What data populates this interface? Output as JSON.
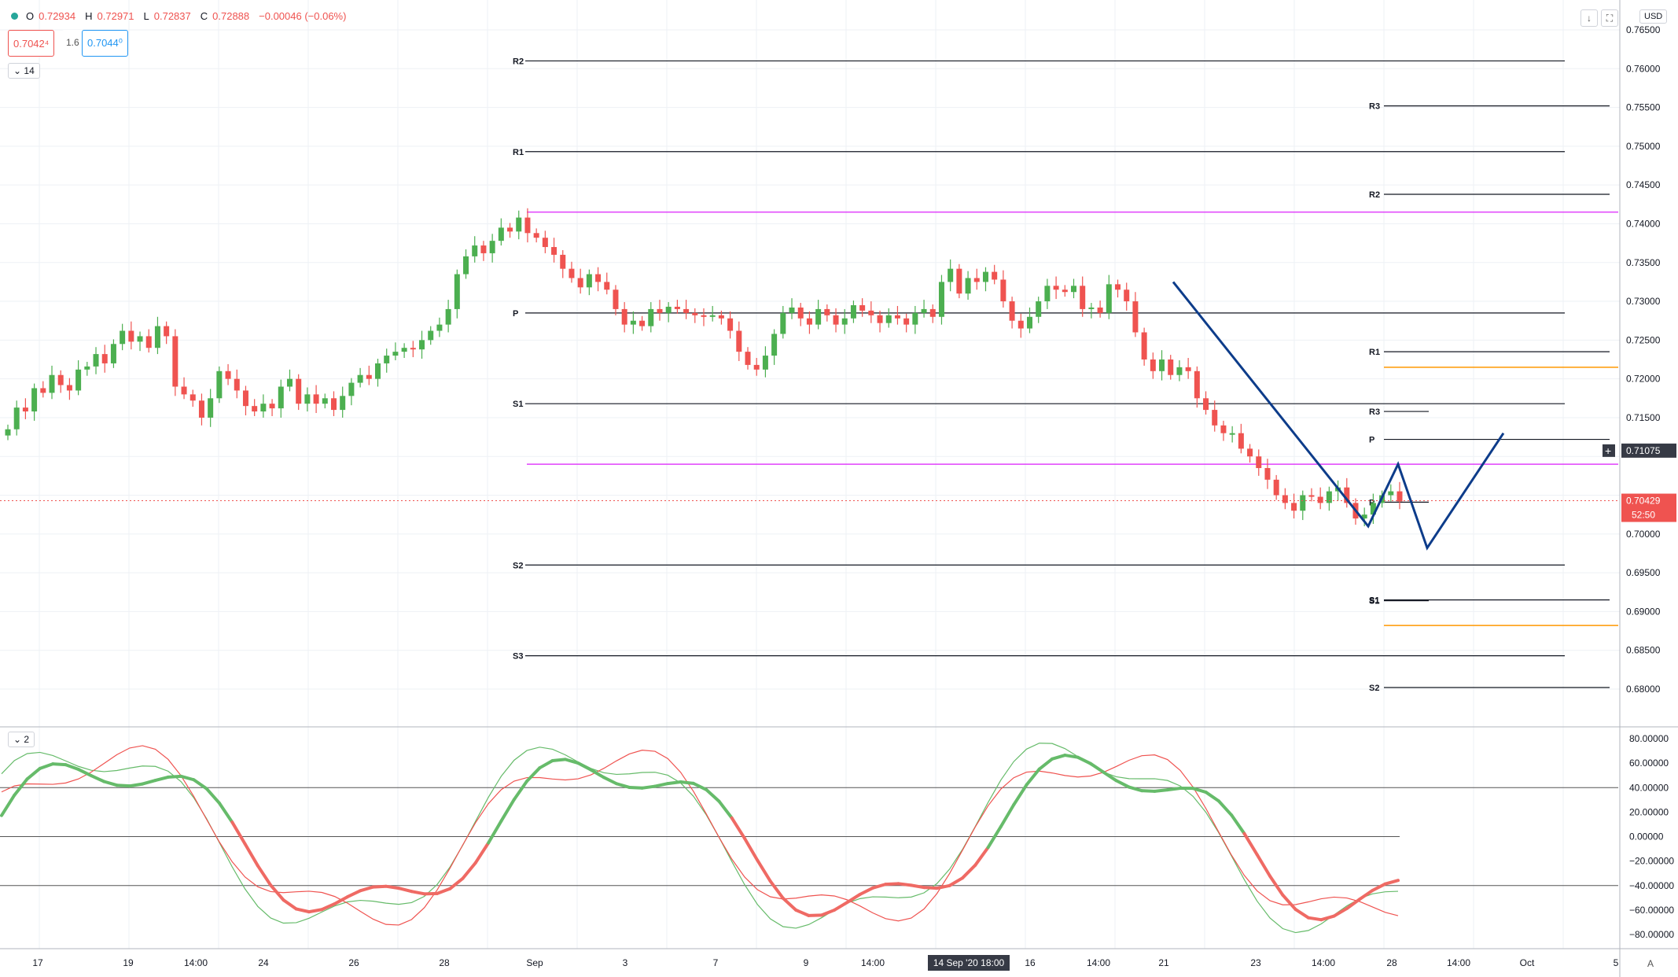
{
  "legend": {
    "o_label": "O",
    "o": "0.72934",
    "h_label": "H",
    "h": "0.72971",
    "l_label": "L",
    "l": "0.72837",
    "c_label": "C",
    "c": "0.72888",
    "change": "−0.00046 (−0.06%)"
  },
  "bid": "0.7042⁴",
  "spread": "1.6",
  "ask": "0.7044⁰",
  "period_label": "14",
  "osc_label": "2",
  "currency": "USD",
  "axis_corner": "A",
  "colors": {
    "up": "#4caf50",
    "down": "#ef5350",
    "pattern": "#0d3c8a",
    "magenta": "#e040fb",
    "orange": "#ff9800"
  },
  "icons": {
    "down_arrow": "arrow-down-icon",
    "fullscreen": "fullscreen-icon"
  },
  "price_axis": {
    "ticks": [
      "0.76500",
      "0.76000",
      "0.75500",
      "0.75000",
      "0.74500",
      "0.74000",
      "0.73500",
      "0.73000",
      "0.72500",
      "0.72000",
      "0.71500",
      "0.71075",
      "0.70429",
      "0.70000",
      "0.69500",
      "0.69000",
      "0.68500",
      "0.68000"
    ],
    "crosshair_label": "0.71075",
    "last_label": "0.70429",
    "countdown": "52:50"
  },
  "osc_axis": {
    "ticks": [
      "80.00000",
      "60.00000",
      "40.00000",
      "20.00000",
      "0.00000",
      "−20.00000",
      "−40.00000",
      "−60.00000",
      "−80.00000"
    ]
  },
  "time_axis": {
    "labels": [
      "17",
      "19",
      "14:00",
      "24",
      "26",
      "28",
      "Sep",
      "3",
      "7",
      "9",
      "14:00",
      "16",
      "14:00",
      "21",
      "23",
      "14:00",
      "28",
      "14:00",
      "Oct",
      "5"
    ],
    "crosshair_label": "14 Sep '20   18:00"
  },
  "chart_data": {
    "type": "candlestick",
    "pivots_monthly": [
      {
        "label": "R2",
        "value": 0.761
      },
      {
        "label": "R1",
        "value": 0.7493
      },
      {
        "label": "P",
        "value": 0.7285
      },
      {
        "label": "S1",
        "value": 0.7168
      },
      {
        "label": "S2",
        "value": 0.696
      },
      {
        "label": "S3",
        "value": 0.6843
      }
    ],
    "pivots_weekly": [
      {
        "label": "R3",
        "value": 0.7552
      },
      {
        "label": "R2",
        "value": 0.7438
      },
      {
        "label": "R1",
        "value": 0.7235
      },
      {
        "label": "S1",
        "value": 0.6915
      },
      {
        "label": "S2",
        "value": 0.6802
      }
    ],
    "pivots_daily": [
      {
        "label": "R3",
        "value": 0.7158
      },
      {
        "label": "P",
        "value": 0.7122
      },
      {
        "label": "P",
        "value": 0.7041
      },
      {
        "label": "S1",
        "value": 0.6914
      }
    ],
    "hlines": [
      {
        "value": 0.7415,
        "color": "magenta"
      },
      {
        "value": 0.709,
        "color": "magenta"
      },
      {
        "value": 0.7215,
        "color": "orange"
      },
      {
        "value": 0.6882,
        "color": "orange"
      }
    ],
    "candles": [
      0.7135,
      0.7163,
      0.7158,
      0.7188,
      0.7182,
      0.7205,
      0.7192,
      0.7185,
      0.7212,
      0.7216,
      0.7232,
      0.722,
      0.7245,
      0.7262,
      0.7248,
      0.7255,
      0.724,
      0.7268,
      0.7255,
      0.719,
      0.718,
      0.7172,
      0.715,
      0.7175,
      0.721,
      0.72,
      0.7185,
      0.7165,
      0.7158,
      0.7168,
      0.7162,
      0.719,
      0.72,
      0.7168,
      0.718,
      0.7168,
      0.7175,
      0.716,
      0.7178,
      0.7195,
      0.7205,
      0.72,
      0.722,
      0.723,
      0.7235,
      0.724,
      0.7238,
      0.725,
      0.7262,
      0.727,
      0.729,
      0.7335,
      0.7358,
      0.7372,
      0.7362,
      0.7378,
      0.7395,
      0.739,
      0.7408,
      0.7388,
      0.7382,
      0.737,
      0.736,
      0.7342,
      0.733,
      0.7318,
      0.7335,
      0.7325,
      0.7315,
      0.729,
      0.727,
      0.7275,
      0.7268,
      0.729,
      0.7285,
      0.7293,
      0.729,
      0.7285,
      0.7282,
      0.728,
      0.7282,
      0.7278,
      0.7262,
      0.7235,
      0.7218,
      0.7212,
      0.723,
      0.7258,
      0.7285,
      0.7292,
      0.7278,
      0.727,
      0.729,
      0.7282,
      0.727,
      0.7278,
      0.7295,
      0.7288,
      0.7282,
      0.7272,
      0.7282,
      0.7278,
      0.727,
      0.7285,
      0.729,
      0.728,
      0.7325,
      0.7342,
      0.731,
      0.733,
      0.7325,
      0.7338,
      0.7328,
      0.73,
      0.7275,
      0.7265,
      0.728,
      0.73,
      0.732,
      0.7315,
      0.7312,
      0.732,
      0.729,
      0.7292,
      0.7285,
      0.7322,
      0.7315,
      0.73,
      0.726,
      0.7225,
      0.721,
      0.7225,
      0.7205,
      0.7215,
      0.721,
      0.7175,
      0.716,
      0.714,
      0.713,
      0.713,
      0.711,
      0.71,
      0.7085,
      0.707,
      0.705,
      0.704,
      0.703,
      0.705,
      0.7048,
      0.704,
      0.7055,
      0.706,
      0.704,
      0.702,
      0.7025,
      0.704,
      0.705,
      0.7055,
      0.7042
    ]
  }
}
